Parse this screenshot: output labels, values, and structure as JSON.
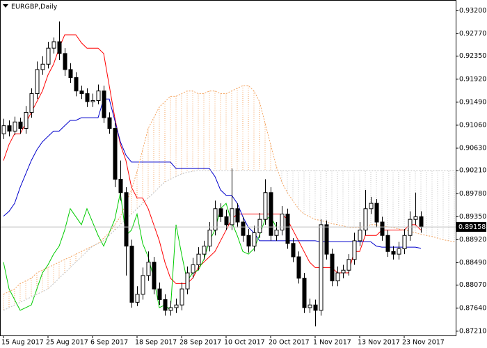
{
  "chart_data": {
    "type": "candlestick",
    "title": "EURGBP,Daily",
    "categories": [
      "15 Aug 2017",
      null,
      null,
      null,
      null,
      null,
      null,
      null,
      "25 Aug 2017",
      null,
      null,
      null,
      null,
      null,
      null,
      null,
      "6 Sep 2017",
      null,
      null,
      null,
      null,
      null,
      null,
      null,
      "18 Sep 2017",
      null,
      null,
      null,
      null,
      null,
      null,
      null,
      "28 Sep 2017",
      null,
      null,
      null,
      null,
      null,
      null,
      null,
      "10 Oct 2017",
      null,
      null,
      null,
      null,
      null,
      null,
      null,
      "20 Oct 2017",
      null,
      null,
      null,
      null,
      null,
      null,
      null,
      "1 Nov 2017",
      null,
      null,
      null,
      null,
      null,
      null,
      null,
      "13 Nov 2017",
      null,
      null,
      null,
      null,
      null,
      null,
      null,
      "23 Nov 2017",
      null,
      null,
      null,
      null,
      null,
      null,
      null,
      null,
      null
    ],
    "open": [
      0.909,
      0.9105,
      0.9095,
      0.9112,
      0.91,
      0.913,
      0.9165,
      0.921,
      0.922,
      0.925,
      0.9262,
      0.924,
      0.921,
      0.9195,
      0.917,
      0.9165,
      0.915,
      0.9152,
      0.917,
      0.912,
      0.91,
      0.9005,
      0.898,
      0.888,
      0.8775,
      0.879,
      0.8825,
      0.885,
      0.88,
      0.878,
      0.876,
      0.8765,
      0.877,
      0.88,
      0.883,
      0.8845,
      0.8865,
      0.888,
      0.891,
      0.895,
      0.8935,
      0.892,
      0.895,
      0.8925,
      0.89,
      0.888,
      0.8905,
      0.893,
      0.898,
      0.89,
      0.891,
      0.894,
      0.8885,
      0.886,
      0.882,
      0.8765,
      0.877,
      0.876,
      0.892,
      0.8865,
      0.8815,
      0.883,
      0.8835,
      0.8855,
      0.889,
      0.891,
      0.895,
      0.896,
      0.8925,
      0.89,
      0.887,
      0.8865,
      0.8875,
      0.89,
      0.893,
      0.8935,
      null,
      null,
      null,
      null,
      null,
      null
    ],
    "high": [
      0.9118,
      0.9115,
      0.9122,
      0.912,
      0.9142,
      0.9175,
      0.9225,
      0.9235,
      0.9262,
      0.927,
      0.93,
      0.925,
      0.9222,
      0.9205,
      0.918,
      0.9175,
      0.9165,
      0.9182,
      0.918,
      0.913,
      0.911,
      0.904,
      0.899,
      0.8892,
      0.8805,
      0.884,
      0.887,
      0.886,
      0.8812,
      0.879,
      0.8778,
      0.8782,
      0.8812,
      0.8842,
      0.8858,
      0.8878,
      0.889,
      0.8925,
      0.8965,
      0.896,
      0.8948,
      0.9025,
      0.896,
      0.8935,
      0.8912,
      0.8918,
      0.8942,
      0.9005,
      0.899,
      0.8925,
      0.8955,
      0.895,
      0.8895,
      0.887,
      0.883,
      0.8782,
      0.878,
      0.893,
      0.8928,
      0.8875,
      0.8842,
      0.8845,
      0.8865,
      0.8905,
      0.8925,
      0.8985,
      0.8972,
      0.8968,
      0.8935,
      0.891,
      0.888,
      0.8888,
      0.8912,
      0.8945,
      0.898,
      0.8945,
      null,
      null,
      null,
      null,
      null,
      null
    ],
    "low": [
      0.908,
      0.9085,
      0.9088,
      0.909,
      0.909,
      0.912,
      0.9155,
      0.92,
      0.9212,
      0.924,
      0.9228,
      0.9198,
      0.9185,
      0.916,
      0.9155,
      0.914,
      0.914,
      0.9145,
      0.911,
      0.909,
      0.899,
      0.8965,
      0.8825,
      0.8765,
      0.8768,
      0.878,
      0.8815,
      0.879,
      0.877,
      0.875,
      0.875,
      0.8755,
      0.876,
      0.879,
      0.882,
      0.8835,
      0.8855,
      0.887,
      0.89,
      0.8925,
      0.891,
      0.891,
      0.8915,
      0.8888,
      0.8868,
      0.887,
      0.8895,
      0.892,
      0.889,
      0.889,
      0.89,
      0.8875,
      0.885,
      0.881,
      0.8755,
      0.8755,
      0.873,
      0.875,
      0.8855,
      0.8805,
      0.8805,
      0.882,
      0.8825,
      0.8845,
      0.888,
      0.89,
      0.894,
      0.8915,
      0.889,
      0.886,
      0.8855,
      0.8855,
      0.8865,
      0.889,
      0.892,
      0.8905,
      null,
      null,
      null,
      null,
      null,
      null
    ],
    "close": [
      0.9105,
      0.9095,
      0.9112,
      0.91,
      0.913,
      0.9165,
      0.921,
      0.922,
      0.925,
      0.9262,
      0.924,
      0.921,
      0.9195,
      0.917,
      0.9165,
      0.915,
      0.9152,
      0.917,
      0.912,
      0.91,
      0.9005,
      0.898,
      0.888,
      0.8775,
      0.879,
      0.8825,
      0.885,
      0.88,
      0.878,
      0.876,
      0.8765,
      0.877,
      0.88,
      0.883,
      0.8845,
      0.8865,
      0.888,
      0.891,
      0.895,
      0.8935,
      0.892,
      0.895,
      0.8925,
      0.89,
      0.888,
      0.8905,
      0.893,
      0.898,
      0.89,
      0.891,
      0.894,
      0.8885,
      0.886,
      0.882,
      0.8765,
      0.877,
      0.876,
      0.892,
      0.8865,
      0.8815,
      0.883,
      0.8835,
      0.8855,
      0.889,
      0.891,
      0.895,
      0.896,
      0.8925,
      0.89,
      0.887,
      0.8865,
      0.8875,
      0.89,
      0.893,
      0.8935,
      0.89158,
      null,
      null,
      null,
      null,
      null,
      null
    ],
    "candle_colors": {
      "up": "#ffffff",
      "down": "#000000",
      "outline": "#000000"
    },
    "series": [
      {
        "color": "#ff0000",
        "style": "solid",
        "values": [
          0.904,
          0.907,
          0.909,
          0.909,
          0.911,
          0.913,
          0.915,
          0.917,
          0.92,
          0.922,
          0.925,
          0.9275,
          0.9275,
          0.9275,
          0.926,
          0.925,
          0.925,
          0.925,
          0.924,
          0.918,
          0.912,
          0.907,
          0.904,
          0.899,
          0.897,
          0.897,
          0.895,
          0.892,
          0.889,
          0.885,
          0.882,
          0.881,
          0.881,
          0.881,
          0.882,
          0.884,
          0.885,
          0.886,
          0.887,
          0.889,
          0.891,
          0.893,
          0.894,
          0.894,
          0.894,
          0.894,
          0.894,
          0.894,
          0.894,
          0.894,
          0.894,
          0.893,
          0.891,
          0.889,
          0.887,
          0.885,
          0.884,
          0.884,
          0.884,
          0.884,
          0.883,
          0.883,
          0.883,
          0.887,
          0.887,
          0.89,
          0.89,
          0.89,
          0.891,
          0.891,
          0.891,
          0.891,
          0.891,
          0.892,
          0.892,
          0.891,
          null,
          null,
          null,
          null,
          null,
          null
        ]
      },
      {
        "color": "#0000cc",
        "style": "solid",
        "values": [
          0.8936,
          0.8945,
          0.896,
          0.899,
          0.9015,
          0.904,
          0.906,
          0.9075,
          0.9085,
          0.9095,
          0.9095,
          0.9105,
          0.9115,
          0.9115,
          0.912,
          0.912,
          0.912,
          0.912,
          0.9155,
          0.9155,
          0.9115,
          0.9075,
          0.905,
          0.9037,
          0.9037,
          0.9037,
          0.9037,
          0.9037,
          0.9037,
          0.9037,
          0.9037,
          0.9025,
          0.9025,
          0.9025,
          0.9025,
          0.9025,
          0.9025,
          0.9025,
          0.901,
          0.8985,
          0.8975,
          0.8975,
          0.896,
          0.8935,
          0.8915,
          0.8905,
          0.889,
          0.889,
          0.889,
          0.889,
          0.889,
          0.889,
          0.889,
          0.889,
          0.889,
          0.889,
          0.889,
          0.8888,
          0.8888,
          0.8888,
          0.8888,
          0.8888,
          0.8888,
          0.8888,
          0.8888,
          0.8888,
          0.8888,
          0.888,
          0.8878,
          0.8878,
          0.8878,
          0.8878,
          0.8878,
          0.8878,
          0.8878,
          0.8876,
          null,
          null,
          null,
          null,
          null,
          null
        ]
      },
      {
        "color": "#00cc00",
        "style": "solid",
        "values": [
          0.885,
          0.88,
          0.878,
          0.876,
          0.8765,
          0.877,
          0.88,
          0.883,
          0.8845,
          0.8865,
          0.888,
          0.891,
          0.895,
          0.8935,
          0.892,
          0.895,
          0.8925,
          0.89,
          0.888,
          0.8905,
          0.893,
          0.898,
          0.89,
          0.891,
          0.894,
          0.8885,
          0.886,
          0.882,
          0.8765,
          0.877,
          0.876,
          0.892,
          0.8865,
          0.8815,
          0.883,
          0.8835,
          0.8855,
          0.889,
          0.891,
          0.895,
          0.896,
          0.8925,
          0.89,
          0.887,
          0.8865,
          0.8875,
          0.89,
          0.893,
          0.8935,
          0.89158,
          null,
          null,
          null,
          null,
          null,
          null,
          null,
          null,
          null,
          null,
          null,
          null,
          null,
          null,
          null,
          null,
          null,
          null,
          null,
          null,
          null,
          null,
          null,
          null,
          null,
          null,
          null,
          null,
          null,
          null,
          null,
          null
        ]
      },
      {
        "color": "#f4a460",
        "style": "dashed",
        "values": [
          0.879,
          0.8795,
          0.88,
          0.881,
          0.8815,
          0.882,
          0.883,
          0.8835,
          0.884,
          0.8845,
          0.885,
          0.8855,
          0.886,
          0.8865,
          0.887,
          0.8875,
          0.888,
          0.8885,
          0.8895,
          0.8905,
          0.892,
          0.8935,
          0.896,
          0.8985,
          0.902,
          0.906,
          0.91,
          0.912,
          0.914,
          0.915,
          0.916,
          0.916,
          0.9165,
          0.917,
          0.917,
          0.9165,
          0.9165,
          0.917,
          0.917,
          0.9165,
          0.9165,
          0.917,
          0.9175,
          0.918,
          0.918,
          0.917,
          0.915,
          0.911,
          0.907,
          0.903,
          0.9,
          0.898,
          0.8965,
          0.895,
          0.894,
          0.8935,
          0.893,
          0.8928,
          0.8925,
          0.8922,
          0.892,
          0.8918,
          0.8915,
          0.8915,
          0.8915,
          0.8917,
          0.892,
          0.892,
          0.8918,
          0.8916,
          0.8915,
          0.8912,
          0.891,
          0.8908,
          0.8905,
          0.8902,
          0.89,
          0.8898,
          0.8895,
          0.8892,
          0.889,
          0.8888
        ]
      },
      {
        "color": "#c0c0c0",
        "style": "dashed",
        "values": [
          0.876,
          0.8765,
          0.877,
          0.8775,
          0.878,
          0.8785,
          0.879,
          0.8795,
          0.88,
          0.881,
          0.882,
          0.883,
          0.884,
          0.885,
          0.886,
          0.887,
          0.888,
          0.8885,
          0.889,
          0.89,
          0.891,
          0.892,
          0.893,
          0.894,
          0.895,
          0.896,
          0.897,
          0.898,
          0.899,
          0.9,
          0.9005,
          0.901,
          0.9015,
          0.9018,
          0.902,
          0.9021,
          0.9021,
          0.9021,
          0.9021,
          0.9021,
          0.9021,
          0.9021,
          0.9021,
          0.9021,
          0.9021,
          0.9021,
          0.9021,
          0.9021,
          0.9021,
          0.9021,
          0.9021,
          0.9021,
          0.9021,
          0.9021,
          0.9021,
          0.9021,
          0.9021,
          0.9021,
          0.9021,
          0.9021,
          0.9021,
          0.9021,
          0.9021,
          0.9021,
          0.9021,
          0.9021,
          0.9021,
          0.9021,
          0.9021,
          0.9021,
          0.9021,
          0.9021,
          0.9021,
          0.9021,
          0.9021,
          0.9021,
          0.9021,
          0.9021,
          0.9021,
          0.9021,
          0.9021,
          0.9021
        ]
      }
    ],
    "cloud": {
      "spans": [
        3,
        4
      ],
      "colors": [
        "#f4a460",
        "#c0c0c0"
      ]
    },
    "ylim": [
      0.8713,
      0.934
    ],
    "yticks": [
      {
        "value": 0.932,
        "label": "0.93200"
      },
      {
        "value": 0.9277,
        "label": "0.92770"
      },
      {
        "value": 0.9235,
        "label": "0.92350"
      },
      {
        "value": 0.9192,
        "label": "0.91920"
      },
      {
        "value": 0.9149,
        "label": "0.91490"
      },
      {
        "value": 0.9106,
        "label": "0.91060"
      },
      {
        "value": 0.9063,
        "label": "0.90630"
      },
      {
        "value": 0.9021,
        "label": "0.90210"
      },
      {
        "value": 0.8978,
        "label": "0.89780"
      },
      {
        "value": 0.8935,
        "label": "0.89350"
      },
      {
        "value": 0.8892,
        "label": "0.88920"
      },
      {
        "value": 0.8849,
        "label": "0.88490"
      },
      {
        "value": 0.8807,
        "label": "0.88070"
      },
      {
        "value": 0.8764,
        "label": "0.87640"
      },
      {
        "value": 0.8721,
        "label": "0.87210"
      }
    ],
    "grid": false
  }
}
